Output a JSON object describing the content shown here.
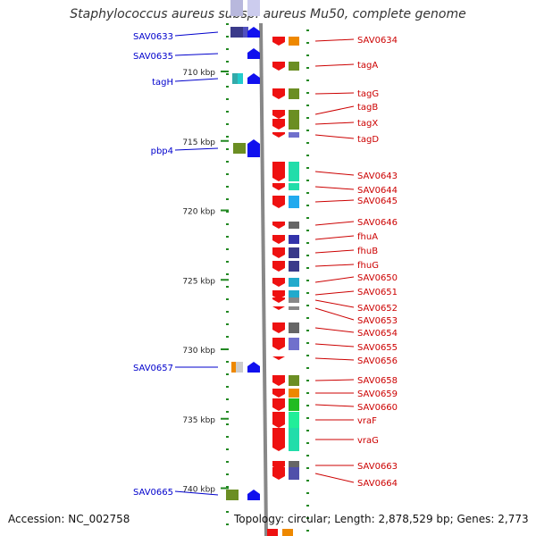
{
  "title": "Staphylococcus aureus subsp. aureus Mu50, complete genome",
  "footer": {
    "accession": "Accession: NC_002758",
    "topology": "Topology: circular; Length: 2,878,529 bp; Genes: 2,773"
  },
  "colors": {
    "axis": "#888888",
    "left_label": "#0000cc",
    "right_label": "#cc0000",
    "tick": "#228822",
    "gene_red": "#ee1111",
    "gene_blue": "#1111ee"
  },
  "scale": {
    "unit": "kbp",
    "ticks": [
      {
        "kbp": 710,
        "label": "710 kbp"
      },
      {
        "kbp": 715,
        "label": "715 kbp"
      },
      {
        "kbp": 720,
        "label": "720 kbp"
      },
      {
        "kbp": 725,
        "label": "725 kbp"
      },
      {
        "kbp": 730,
        "label": "730 kbp"
      },
      {
        "kbp": 735,
        "label": "735 kbp"
      },
      {
        "kbp": 740,
        "label": "740 kbp"
      }
    ]
  },
  "left_genes": [
    {
      "name": "SAV0633"
    },
    {
      "name": "SAV0635"
    },
    {
      "name": "tagH"
    },
    {
      "name": "pbp4"
    },
    {
      "name": "SAV0657"
    },
    {
      "name": "SAV0665"
    }
  ],
  "right_genes": [
    {
      "name": "SAV0634"
    },
    {
      "name": "tagA"
    },
    {
      "name": "tagG"
    },
    {
      "name": "tagB"
    },
    {
      "name": "tagX"
    },
    {
      "name": "tagD"
    },
    {
      "name": "SAV0643"
    },
    {
      "name": "SAV0644"
    },
    {
      "name": "SAV0645"
    },
    {
      "name": "SAV0646"
    },
    {
      "name": "fhuA"
    },
    {
      "name": "fhuB"
    },
    {
      "name": "fhuG"
    },
    {
      "name": "SAV0650"
    },
    {
      "name": "SAV0651"
    },
    {
      "name": "SAV0652"
    },
    {
      "name": "SAV0653"
    },
    {
      "name": "SAV0654"
    },
    {
      "name": "SAV0655"
    },
    {
      "name": "SAV0656"
    },
    {
      "name": "SAV0658"
    },
    {
      "name": "SAV0659"
    },
    {
      "name": "SAV0660"
    },
    {
      "name": "vraF"
    },
    {
      "name": "vraG"
    },
    {
      "name": "SAV0663"
    },
    {
      "name": "SAV0664"
    }
  ]
}
